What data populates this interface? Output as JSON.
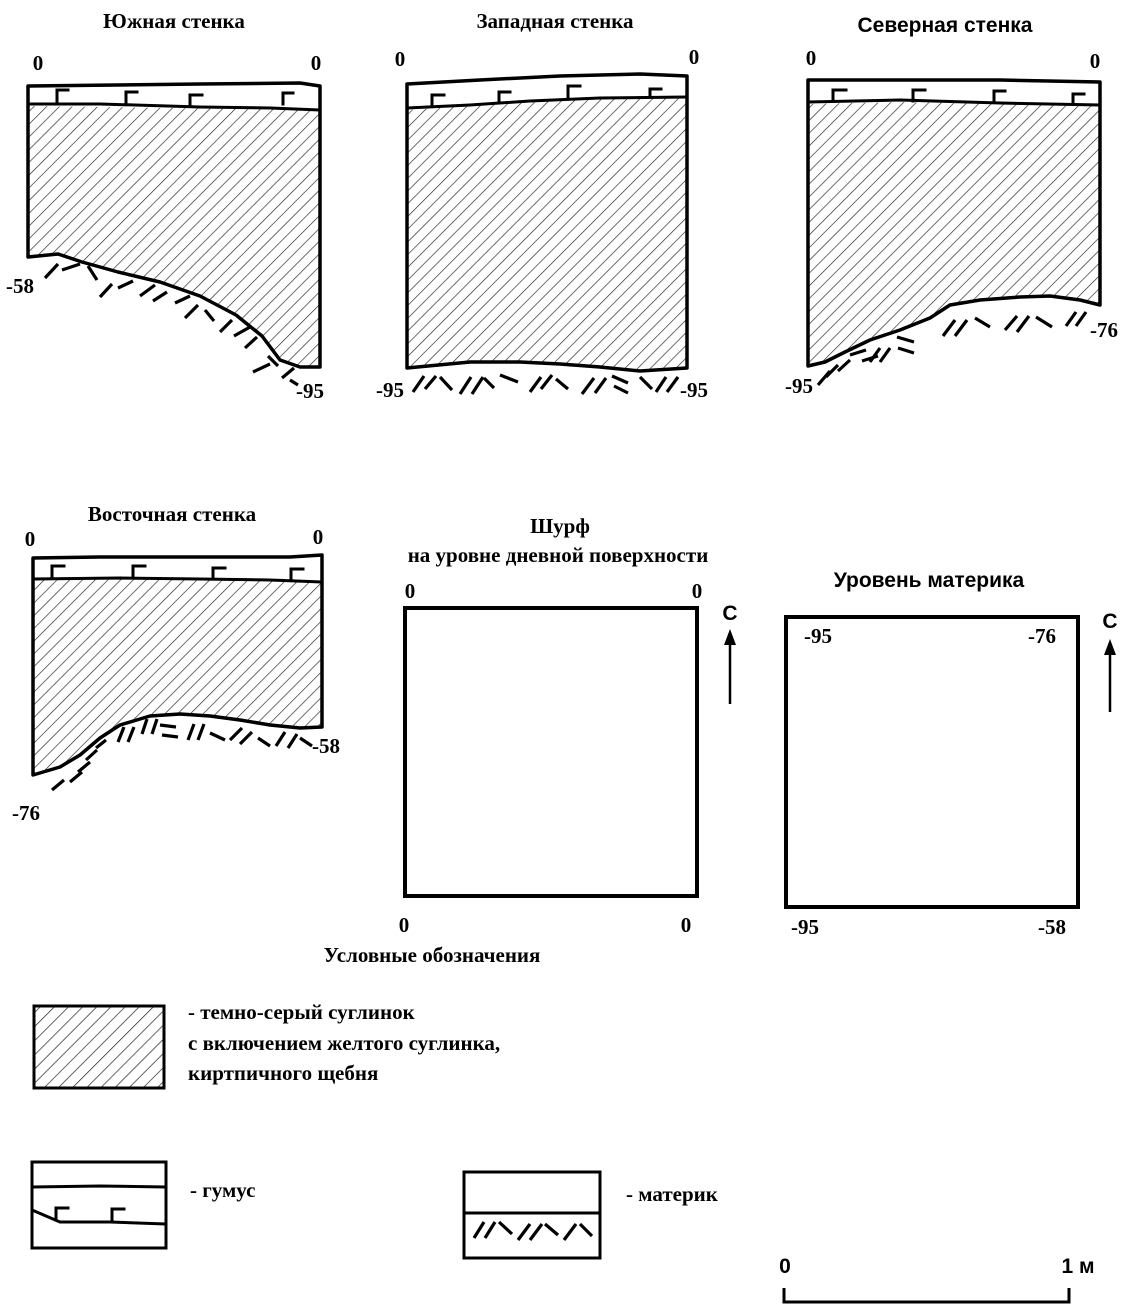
{
  "walls": {
    "south": {
      "title": "Южная стенка",
      "top_left": "0",
      "top_right": "0",
      "bottom_left": "-58",
      "bottom_right": "-95"
    },
    "west": {
      "title": "Западная стенка",
      "top_left": "0",
      "top_right": "0",
      "bottom_left": "-95",
      "bottom_right": "-95"
    },
    "north": {
      "title": "Северная стенка",
      "top_left": "0",
      "top_right": "0",
      "bottom_left": "-95",
      "bottom_right": "-76"
    },
    "east": {
      "title": "Восточная стенка",
      "top_left": "0",
      "top_right": "0",
      "bottom_left": "-76",
      "bottom_right": "-58"
    }
  },
  "plan_surface": {
    "title_line1": "Шурф",
    "title_line2": "на уровне дневной поверхности",
    "top_left": "0",
    "top_right": "0",
    "bottom_left": "0",
    "bottom_right": "0",
    "north_label": "С"
  },
  "plan_bedrock": {
    "title": "Уровень материка",
    "top_left": "-95",
    "top_right": "-76",
    "bottom_left": "-95",
    "bottom_right": "-58",
    "north_label": "С"
  },
  "legend": {
    "title": "Условные обозначения",
    "loam_line1": "- темно-серый суглинок",
    "loam_line2": "с включением желтого суглинка,",
    "loam_line3": "киртпичного щебня",
    "humus": "- гумус",
    "bedrock": "- материк"
  },
  "scale": {
    "start": "0",
    "end": "1 м"
  }
}
